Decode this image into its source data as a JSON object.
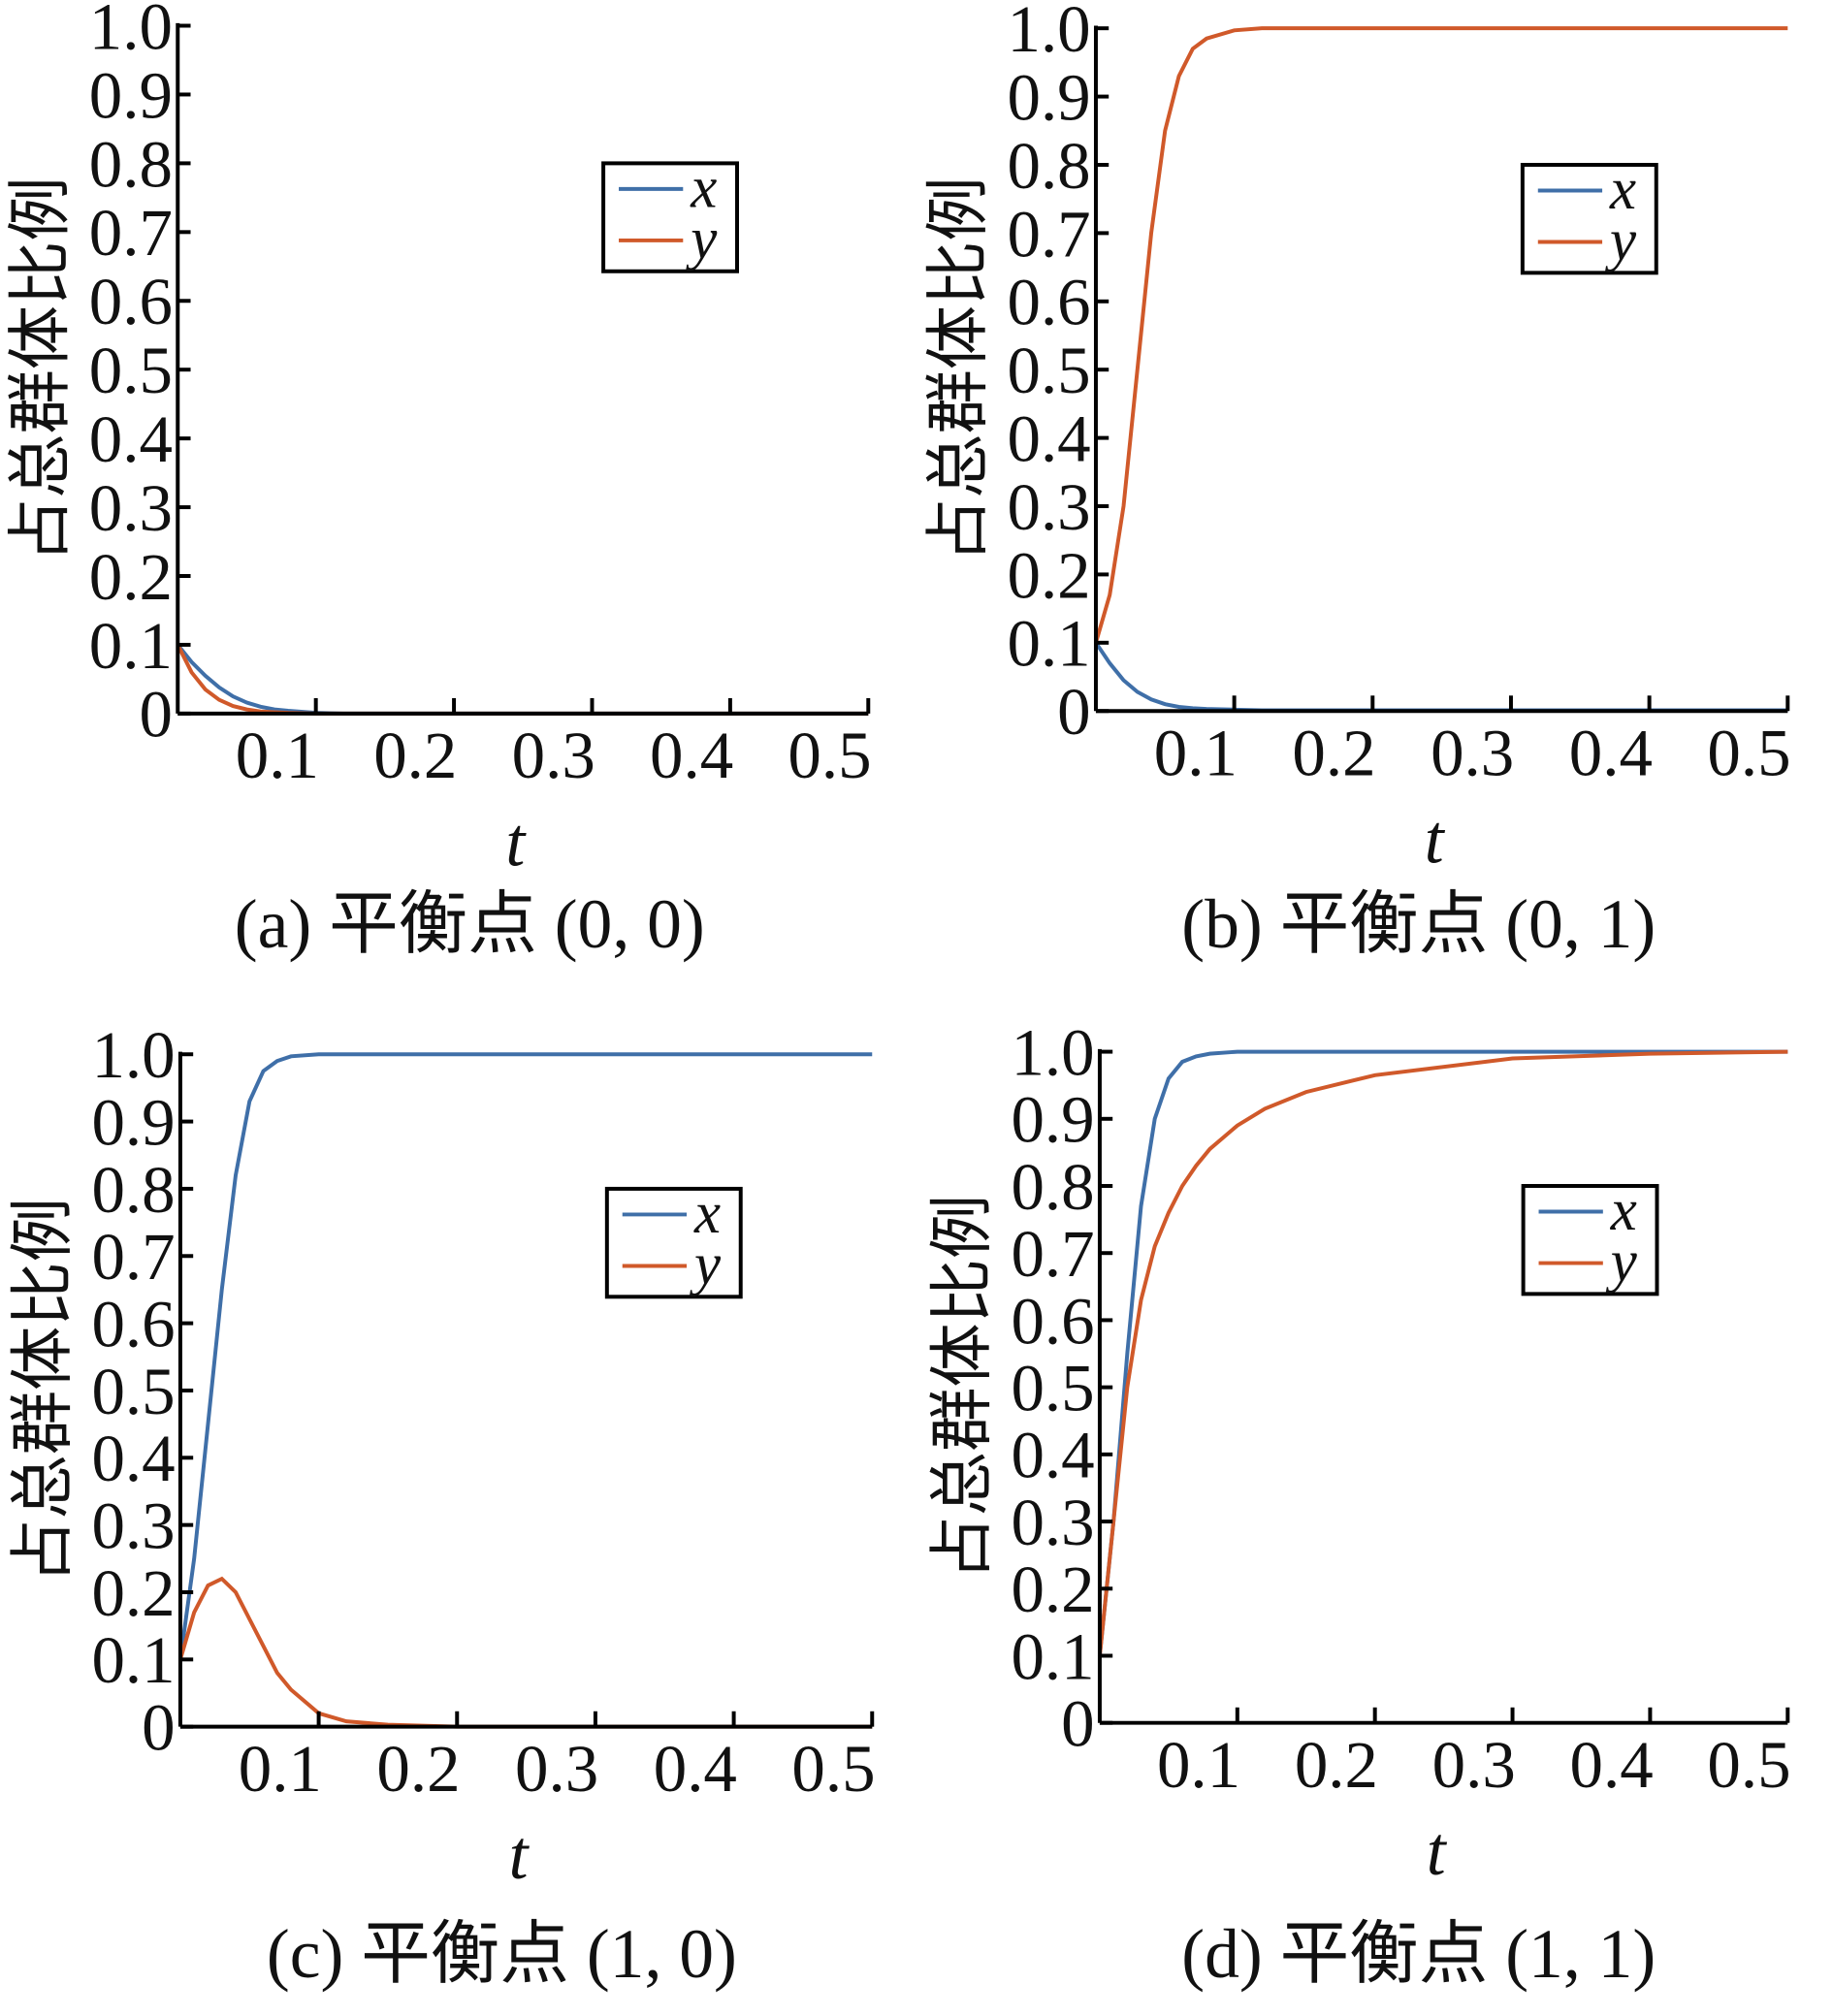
{
  "chart_data": [
    {
      "type": "line",
      "caption": "(a) 平衡点 (0, 0)",
      "x_label": "t",
      "y_label": "占总群体比例",
      "x": [
        0,
        0.01,
        0.02,
        0.03,
        0.04,
        0.05,
        0.06,
        0.07,
        0.08,
        0.1,
        0.12,
        0.15,
        0.2,
        0.3,
        0.4,
        0.5
      ],
      "series": [
        {
          "name": "x",
          "color": "#3f6fa8",
          "values": [
            0.1,
            0.075,
            0.055,
            0.038,
            0.025,
            0.016,
            0.01,
            0.006,
            0.004,
            0.001,
            0,
            0,
            0,
            0,
            0,
            0
          ]
        },
        {
          "name": "y",
          "color": "#d0592a",
          "values": [
            0.1,
            0.06,
            0.035,
            0.02,
            0.011,
            0.006,
            0.003,
            0.002,
            0.001,
            0,
            0,
            0,
            0,
            0,
            0,
            0
          ]
        }
      ],
      "xlim": [
        0,
        0.5
      ],
      "xticks": [
        0.1,
        0.2,
        0.3,
        0.4,
        0.5
      ],
      "ylim": [
        0,
        1
      ],
      "yticks": [
        0,
        0.1,
        0.2,
        0.3,
        0.4,
        0.5,
        0.6,
        0.7,
        0.8,
        0.9,
        {
          "value": 1,
          "label": "1.0"
        }
      ],
      "legend": "upper right"
    },
    {
      "type": "line",
      "caption": "(b) 平衡点 (0, 1)",
      "x_label": "t",
      "y_label": "占总群体比例",
      "x": [
        0,
        0.01,
        0.02,
        0.03,
        0.04,
        0.05,
        0.06,
        0.07,
        0.08,
        0.1,
        0.12,
        0.15,
        0.2,
        0.3,
        0.4,
        0.5
      ],
      "series": [
        {
          "name": "x",
          "color": "#3f6fa8",
          "values": [
            0.1,
            0.07,
            0.045,
            0.028,
            0.017,
            0.01,
            0.006,
            0.004,
            0.003,
            0.002,
            0.001,
            0.001,
            0.001,
            0.001,
            0.001,
            0.001
          ]
        },
        {
          "name": "y",
          "color": "#d0592a",
          "values": [
            0.1,
            0.17,
            0.3,
            0.5,
            0.7,
            0.85,
            0.93,
            0.97,
            0.985,
            0.997,
            1,
            1,
            1,
            1,
            1,
            1
          ]
        }
      ],
      "xlim": [
        0,
        0.5
      ],
      "xticks": [
        0.1,
        0.2,
        0.3,
        0.4,
        0.5
      ],
      "ylim": [
        0,
        1
      ],
      "yticks": [
        0,
        0.1,
        0.2,
        0.3,
        0.4,
        0.5,
        0.6,
        0.7,
        0.8,
        0.9,
        {
          "value": 1,
          "label": "1.0"
        }
      ],
      "legend": "upper right"
    },
    {
      "type": "line",
      "caption": "(c) 平衡点 (1, 0)",
      "x_label": "t",
      "y_label": "占总群体比例",
      "x": [
        0,
        0.01,
        0.02,
        0.03,
        0.04,
        0.05,
        0.06,
        0.07,
        0.08,
        0.1,
        0.12,
        0.15,
        0.2,
        0.3,
        0.4,
        0.5
      ],
      "series": [
        {
          "name": "x",
          "color": "#3f6fa8",
          "values": [
            0.1,
            0.25,
            0.45,
            0.65,
            0.82,
            0.93,
            0.975,
            0.99,
            0.997,
            1,
            1,
            1,
            1,
            1,
            1,
            1
          ]
        },
        {
          "name": "y",
          "color": "#d0592a",
          "values": [
            0.1,
            0.17,
            0.21,
            0.22,
            0.2,
            0.16,
            0.12,
            0.08,
            0.055,
            0.02,
            0.008,
            0.003,
            0,
            0,
            0,
            0
          ]
        }
      ],
      "xlim": [
        0,
        0.5
      ],
      "xticks": [
        0.1,
        0.2,
        0.3,
        0.4,
        0.5
      ],
      "ylim": [
        0,
        1
      ],
      "yticks": [
        0,
        0.1,
        0.2,
        0.3,
        0.4,
        0.5,
        0.6,
        0.7,
        0.8,
        0.9,
        {
          "value": 1,
          "label": "1.0"
        }
      ],
      "legend": "upper right"
    },
    {
      "type": "line",
      "caption": "(d) 平衡点 (1, 1)",
      "x_label": "t",
      "y_label": "占总群体比例",
      "x": [
        0,
        0.01,
        0.02,
        0.03,
        0.04,
        0.05,
        0.06,
        0.07,
        0.08,
        0.1,
        0.12,
        0.15,
        0.2,
        0.3,
        0.4,
        0.5
      ],
      "series": [
        {
          "name": "x",
          "color": "#3f6fa8",
          "values": [
            0.1,
            0.3,
            0.55,
            0.77,
            0.9,
            0.96,
            0.985,
            0.993,
            0.997,
            1,
            1,
            1,
            1,
            1,
            1,
            1
          ]
        },
        {
          "name": "y",
          "color": "#d0592a",
          "values": [
            0.1,
            0.3,
            0.5,
            0.63,
            0.71,
            0.76,
            0.8,
            0.83,
            0.855,
            0.89,
            0.915,
            0.94,
            0.965,
            0.99,
            0.997,
            1
          ]
        }
      ],
      "xlim": [
        0,
        0.5
      ],
      "xticks": [
        0.1,
        0.2,
        0.3,
        0.4,
        0.5
      ],
      "ylim": [
        0,
        1
      ],
      "yticks": [
        0,
        0.1,
        0.2,
        0.3,
        0.4,
        0.5,
        0.6,
        0.7,
        0.8,
        0.9,
        {
          "value": 1,
          "label": "1.0"
        }
      ],
      "legend": "upper right"
    }
  ]
}
